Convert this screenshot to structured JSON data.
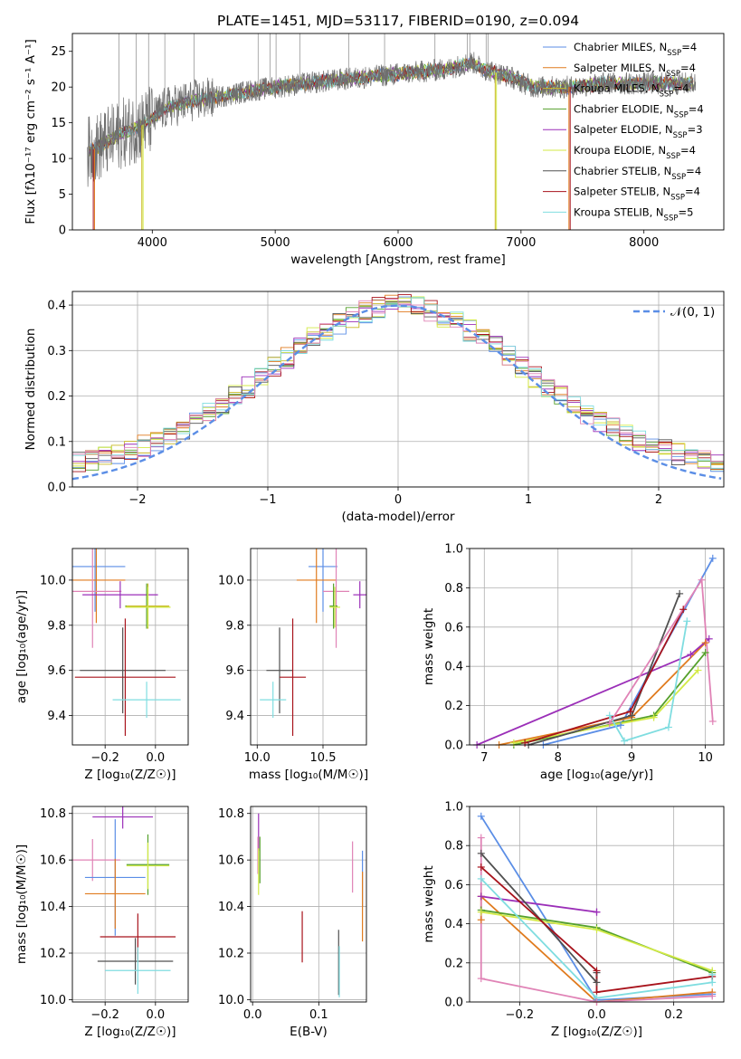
{
  "colors": {
    "cm": "#5b8ee6",
    "sm": "#e07b1e",
    "km": "#c9b824",
    "ce": "#55a02b",
    "se": "#9b2fb8",
    "ke": "#d3ea45",
    "cs": "#505050",
    "ss": "#a8131c",
    "ks": "#7fdde0",
    "pink": "#e083b6",
    "normal_line": "#5b8ee6",
    "grid": "#b0b0b0",
    "data_spectrum": "#6f6f6f"
  },
  "chart_data": [
    {
      "id": "spectrum",
      "type": "line",
      "title": "PLATE=1451, MJD=53117, FIBERID=0190, z=0.094",
      "xlabel": "wavelength [Angstrom, rest frame]",
      "ylabel": "Flux [fλ10⁻¹⁷ erg cm⁻² s⁻¹ A⁻¹]",
      "xlim": [
        3350,
        8650
      ],
      "ylim": [
        0,
        27.5
      ],
      "xticks": [
        4000,
        5000,
        6000,
        7000,
        8000
      ],
      "yticks": [
        0,
        5,
        10,
        15,
        20,
        25
      ],
      "grid": false,
      "legend_position": "right",
      "continuum": {
        "x": [
          3480,
          3550,
          3650,
          3750,
          3900,
          4000,
          4100,
          4300,
          4500,
          4800,
          5100,
          5500,
          5800,
          6100,
          6400,
          6600,
          6700,
          6900,
          7100,
          7400,
          7700,
          8000,
          8300
        ],
        "y": [
          11,
          11.5,
          12.5,
          13.5,
          14.5,
          15.5,
          17,
          18,
          18.5,
          19.5,
          20.2,
          21,
          21.5,
          22,
          22.5,
          23.5,
          22.5,
          21.5,
          20,
          20,
          20.5,
          20.5,
          20.5
        ]
      },
      "series": [
        {
          "name": "Chabrier MILES",
          "nssp": "4",
          "color": "cm"
        },
        {
          "name": "Salpeter MILES",
          "nssp": "4",
          "color": "sm"
        },
        {
          "name": "Kroupa MILES",
          "nssp": "4",
          "color": "km"
        },
        {
          "name": "Chabrier ELODIE",
          "nssp": "4",
          "color": "ce"
        },
        {
          "name": "Salpeter ELODIE",
          "nssp": "3",
          "color": "se"
        },
        {
          "name": "Kroupa ELODIE",
          "nssp": "4",
          "color": "ke"
        },
        {
          "name": "Chabrier STELIB",
          "nssp": "4",
          "color": "cs"
        },
        {
          "name": "Salpeter STELIB",
          "nssp": "4",
          "color": "ss"
        },
        {
          "name": "Kroupa STELIB",
          "nssp": "5",
          "color": "ks"
        }
      ]
    },
    {
      "id": "residuals",
      "type": "histogram",
      "xlabel": "(data-model)/error",
      "ylabel": "Normed distribution",
      "xlim": [
        -2.5,
        2.5
      ],
      "ylim": [
        0,
        0.43
      ],
      "xticks": [
        -2,
        -1,
        0,
        1,
        2
      ],
      "yticks": [
        0.0,
        0.1,
        0.2,
        0.3,
        0.4
      ],
      "grid": true,
      "legend": "𝒩(0, 1)",
      "legend_position": "top-right"
    },
    {
      "id": "age_vs_z",
      "type": "errorbar",
      "xlabel": "Z [log₁₀(Z/Z☉)]",
      "ylabel": "age  [log₁₀(age/yr)]",
      "xlim": [
        -0.33,
        0.13
      ],
      "ylim": [
        9.27,
        10.14
      ],
      "xticks": [
        -0.2,
        0.0
      ],
      "yticks": [
        9.4,
        9.6,
        9.8,
        10.0
      ],
      "grid": true,
      "points": [
        {
          "c": "cm",
          "x": -0.24,
          "xe": 0.12,
          "y": 10.06,
          "ye": 0.2
        },
        {
          "c": "sm",
          "x": -0.235,
          "xe": 0.115,
          "y": 10.0,
          "ye": 0.19
        },
        {
          "c": "pink",
          "x": -0.25,
          "xe": 0.115,
          "y": 9.95,
          "ye": 0.25
        },
        {
          "c": "se",
          "x": -0.14,
          "xe": 0.15,
          "y": 9.935,
          "ye": 0.06
        },
        {
          "c": "ce",
          "x": -0.035,
          "xe": 0.085,
          "y": 9.885,
          "ye": 0.1
        },
        {
          "c": "km",
          "x": -0.03,
          "xe": 0.085,
          "y": 9.885,
          "ye": 0.1
        },
        {
          "c": "ke",
          "x": -0.03,
          "xe": 0.09,
          "y": 9.88,
          "ye": 0.09
        },
        {
          "c": "cs",
          "x": -0.13,
          "xe": 0.17,
          "y": 9.6,
          "ye": 0.19
        },
        {
          "c": "ss",
          "x": -0.12,
          "xe": 0.2,
          "y": 9.57,
          "ye": 0.26
        },
        {
          "c": "ks",
          "x": -0.035,
          "xe": 0.135,
          "y": 9.47,
          "ye": 0.08
        }
      ]
    },
    {
      "id": "age_vs_mass",
      "type": "errorbar",
      "xlabel": "mass [log₁₀(M/M☉)]",
      "xlim": [
        9.95,
        10.83
      ],
      "ylim": [
        9.27,
        10.14
      ],
      "xticks": [
        10.0,
        10.5
      ],
      "yticks": [
        9.4,
        9.6,
        9.8,
        10.0
      ],
      "grid": true,
      "points": [
        {
          "c": "cm",
          "x": 10.5,
          "xe": 0.11,
          "y": 10.06,
          "ye": 0.2
        },
        {
          "c": "sm",
          "x": 10.45,
          "xe": 0.15,
          "y": 10.0,
          "ye": 0.19
        },
        {
          "c": "pink",
          "x": 10.6,
          "xe": 0.1,
          "y": 9.95,
          "ye": 0.25
        },
        {
          "c": "se",
          "x": 10.78,
          "xe": 0.05,
          "y": 9.935,
          "ye": 0.06
        },
        {
          "c": "ce",
          "x": 10.58,
          "xe": 0.03,
          "y": 9.885,
          "ye": 0.1
        },
        {
          "c": "ke",
          "x": 10.59,
          "xe": 0.04,
          "y": 9.88,
          "ye": 0.09
        },
        {
          "c": "cs",
          "x": 10.17,
          "xe": 0.1,
          "y": 9.6,
          "ye": 0.19
        },
        {
          "c": "ss",
          "x": 10.27,
          "xe": 0.1,
          "y": 9.57,
          "ye": 0.26
        },
        {
          "c": "ks",
          "x": 10.12,
          "xe": 0.1,
          "y": 9.47,
          "ye": 0.08
        }
      ]
    },
    {
      "id": "weight_vs_age",
      "type": "line",
      "xlabel": "age  [log₁₀(age/yr)]",
      "ylabel": "mass weight",
      "xlim": [
        6.8,
        10.25
      ],
      "ylim": [
        0,
        1.0
      ],
      "xticks": [
        7,
        8,
        9,
        10
      ],
      "yticks": [
        0.0,
        0.2,
        0.4,
        0.6,
        0.8,
        1.0
      ],
      "grid": true,
      "series": [
        {
          "c": "cm",
          "x": [
            7.8,
            8.85,
            10.1
          ],
          "y": [
            0.0,
            0.1,
            0.95
          ]
        },
        {
          "c": "sm",
          "x": [
            7.2,
            9.0,
            10.0
          ],
          "y": [
            0.0,
            0.14,
            0.52
          ]
        },
        {
          "c": "ce",
          "x": [
            7.4,
            9.3,
            10.0
          ],
          "y": [
            0.0,
            0.15,
            0.47
          ]
        },
        {
          "c": "ke",
          "x": [
            7.4,
            9.3,
            9.9
          ],
          "y": [
            0.01,
            0.14,
            0.38
          ]
        },
        {
          "c": "se",
          "x": [
            6.9,
            9.8,
            10.05
          ],
          "y": [
            0.0,
            0.46,
            0.54
          ]
        },
        {
          "c": "cs",
          "x": [
            7.6,
            9.0,
            9.65
          ],
          "y": [
            0.0,
            0.15,
            0.77
          ]
        },
        {
          "c": "ss",
          "x": [
            7.55,
            8.98,
            9.7
          ],
          "y": [
            0.01,
            0.17,
            0.69
          ]
        },
        {
          "c": "ks",
          "x": [
            8.7,
            8.9,
            9.5,
            9.75
          ],
          "y": [
            0.15,
            0.02,
            0.09,
            0.63
          ]
        },
        {
          "c": "pink",
          "x": [
            8.7,
            9.95,
            10.1
          ],
          "y": [
            0.11,
            0.84,
            0.12
          ]
        }
      ]
    },
    {
      "id": "mass_vs_z",
      "type": "errorbar",
      "xlabel": "Z [log₁₀(Z/Z☉)]",
      "ylabel": "mass [log₁₀(M/M☉)]",
      "xlim": [
        -0.33,
        0.13
      ],
      "ylim": [
        9.99,
        10.83
      ],
      "xticks": [
        -0.2,
        0.0
      ],
      "yticks": [
        10.0,
        10.2,
        10.4,
        10.6,
        10.8
      ],
      "grid": true,
      "points": [
        {
          "c": "se",
          "x": -0.13,
          "xe": 0.12,
          "y": 10.785,
          "ye": 0.05
        },
        {
          "c": "pink",
          "x": -0.25,
          "xe": 0.11,
          "y": 10.6,
          "ye": 0.09
        },
        {
          "c": "ce",
          "x": -0.03,
          "xe": 0.085,
          "y": 10.58,
          "ye": 0.13
        },
        {
          "c": "ke",
          "x": -0.03,
          "xe": 0.085,
          "y": 10.575,
          "ye": 0.1
        },
        {
          "c": "cm",
          "x": -0.16,
          "xe": 0.12,
          "y": 10.525,
          "ye": 0.25
        },
        {
          "c": "sm",
          "x": -0.16,
          "xe": 0.12,
          "y": 10.455,
          "ye": 0.15
        },
        {
          "c": "ss",
          "x": -0.07,
          "xe": 0.15,
          "y": 10.27,
          "ye": 0.1
        },
        {
          "c": "cs",
          "x": -0.08,
          "xe": 0.15,
          "y": 10.165,
          "ye": 0.1
        },
        {
          "c": "ks",
          "x": -0.07,
          "xe": 0.13,
          "y": 10.125,
          "ye": 0.1
        }
      ]
    },
    {
      "id": "mass_vs_ebv",
      "type": "errorbar",
      "xlabel": "E(B-V)",
      "xlim": [
        -0.003,
        0.172
      ],
      "ylim": [
        9.99,
        10.83
      ],
      "xticks": [
        0.0,
        0.1
      ],
      "yticks": [
        10.0,
        10.2,
        10.4,
        10.6,
        10.8
      ],
      "grid": true,
      "points": [
        {
          "c": "se",
          "x": 0.009,
          "xe": 0,
          "y": 10.72,
          "ye": 0.08
        },
        {
          "c": "pink",
          "x": 0.008,
          "xe": 0,
          "y": 10.62,
          "ye": 0.08
        },
        {
          "c": "ce",
          "x": 0.011,
          "xe": 0,
          "y": 10.6,
          "ye": 0.1
        },
        {
          "c": "ke",
          "x": 0.009,
          "xe": 0,
          "y": 10.55,
          "ye": 0.1
        },
        {
          "c": "pink",
          "x": 0.151,
          "xe": 0,
          "y": 10.57,
          "ye": 0.11
        },
        {
          "c": "cm",
          "x": 0.166,
          "xe": 0,
          "y": 10.52,
          "ye": 0.12
        },
        {
          "c": "sm",
          "x": 0.166,
          "xe": 0,
          "y": 10.4,
          "ye": 0.15
        },
        {
          "c": "ss",
          "x": 0.075,
          "xe": 0,
          "y": 10.27,
          "ye": 0.11
        },
        {
          "c": "cs",
          "x": 0.13,
          "xe": 0,
          "y": 10.16,
          "ye": 0.14
        },
        {
          "c": "ks",
          "x": 0.131,
          "xe": 0,
          "y": 10.12,
          "ye": 0.11
        }
      ]
    },
    {
      "id": "weight_vs_z",
      "type": "line",
      "xlabel": "Z [log₁₀(Z/Z☉)]",
      "ylabel": "mass weight",
      "xlim": [
        -0.33,
        0.33
      ],
      "ylim": [
        0,
        1.0
      ],
      "xticks": [
        -0.2,
        0.0,
        0.2
      ],
      "yticks": [
        0.0,
        0.2,
        0.4,
        0.6,
        0.8,
        1.0
      ],
      "grid": true,
      "series": [
        {
          "c": "cm",
          "x": [
            -0.3,
            0.0,
            0.3
          ],
          "y": [
            0.95,
            0.01,
            0.04
          ]
        },
        {
          "c": "sm",
          "x": [
            -0.3,
            -0.3,
            0.0,
            0.3
          ],
          "y": [
            0.42,
            0.54,
            0.0,
            0.05
          ]
        },
        {
          "c": "se",
          "x": [
            -0.3,
            0.0,
            0.0
          ],
          "y": [
            0.54,
            0.46,
            0.46
          ]
        },
        {
          "c": "ce",
          "x": [
            -0.3,
            0.0,
            0.3
          ],
          "y": [
            0.47,
            0.38,
            0.15
          ]
        },
        {
          "c": "ke",
          "x": [
            -0.3,
            0.0,
            0.3
          ],
          "y": [
            0.46,
            0.37,
            0.16
          ]
        },
        {
          "c": "cs",
          "x": [
            -0.3,
            0.0,
            0.0
          ],
          "y": [
            0.76,
            0.1,
            0.15
          ]
        },
        {
          "c": "ss",
          "x": [
            -0.3,
            0.0,
            0.0,
            0.3
          ],
          "y": [
            0.69,
            0.16,
            0.05,
            0.13
          ]
        },
        {
          "c": "ks",
          "x": [
            -0.3,
            0.0,
            0.3,
            0.3
          ],
          "y": [
            0.63,
            0.02,
            0.1,
            0.14
          ]
        },
        {
          "c": "pink",
          "x": [
            -0.3,
            -0.3,
            0.0,
            0.3
          ],
          "y": [
            0.84,
            0.12,
            0.0,
            0.03
          ]
        }
      ]
    }
  ]
}
